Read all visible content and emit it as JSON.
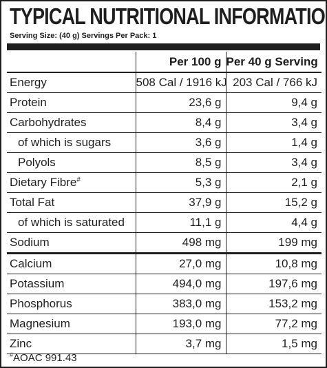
{
  "title": "TYPICAL NUTRITIONAL INFORMATION",
  "serving_info": "Serving Size: (40 g) Servings Per Pack: 1",
  "columns": {
    "per100": "Per 100 g",
    "perServing": "Per 40 g Serving"
  },
  "rows": [
    {
      "label": "Energy",
      "per100": "508 Cal / 1916 kJ",
      "perServing": "203 Cal / 766 kJ"
    },
    {
      "label": "Protein",
      "per100": "23,6 g",
      "perServing": "9,4 g"
    },
    {
      "label": "Carbohydrates",
      "per100": "8,4 g",
      "perServing": "3,4 g"
    },
    {
      "label": "of which is sugars",
      "per100": "3,6 g",
      "perServing": "1,4 g"
    },
    {
      "label": "Polyols",
      "per100": "8,5 g",
      "perServing": "3,4 g"
    },
    {
      "label": "Dietary Fibre",
      "mark": "#",
      "per100": "5,3 g",
      "perServing": "2,1 g"
    },
    {
      "label": "Total Fat",
      "per100": "37,9 g",
      "perServing": "15,2 g"
    },
    {
      "label": "of which is saturated",
      "per100": "11,1 g",
      "perServing": "4,4 g"
    },
    {
      "label": "Sodium",
      "per100": "498 mg",
      "perServing": "199 mg"
    },
    {
      "label": "Calcium",
      "per100": "27,0 mg",
      "perServing": "10,8 mg"
    },
    {
      "label": "Potassium",
      "per100": "494,0 mg",
      "perServing": "197,6 mg"
    },
    {
      "label": "Phosphorus",
      "per100": "383,0 mg",
      "perServing": "153,2 mg"
    },
    {
      "label": "Magnesium",
      "per100": "193,0 mg",
      "perServing": "77,2 mg"
    },
    {
      "label": "Zinc",
      "per100": "3,7 mg",
      "perServing": "1,5 mg"
    }
  ],
  "footnote": {
    "mark": "#",
    "text": "AOAC 991.43"
  },
  "colors": {
    "ink": "#1e1e1e",
    "background": "#ffffff"
  }
}
